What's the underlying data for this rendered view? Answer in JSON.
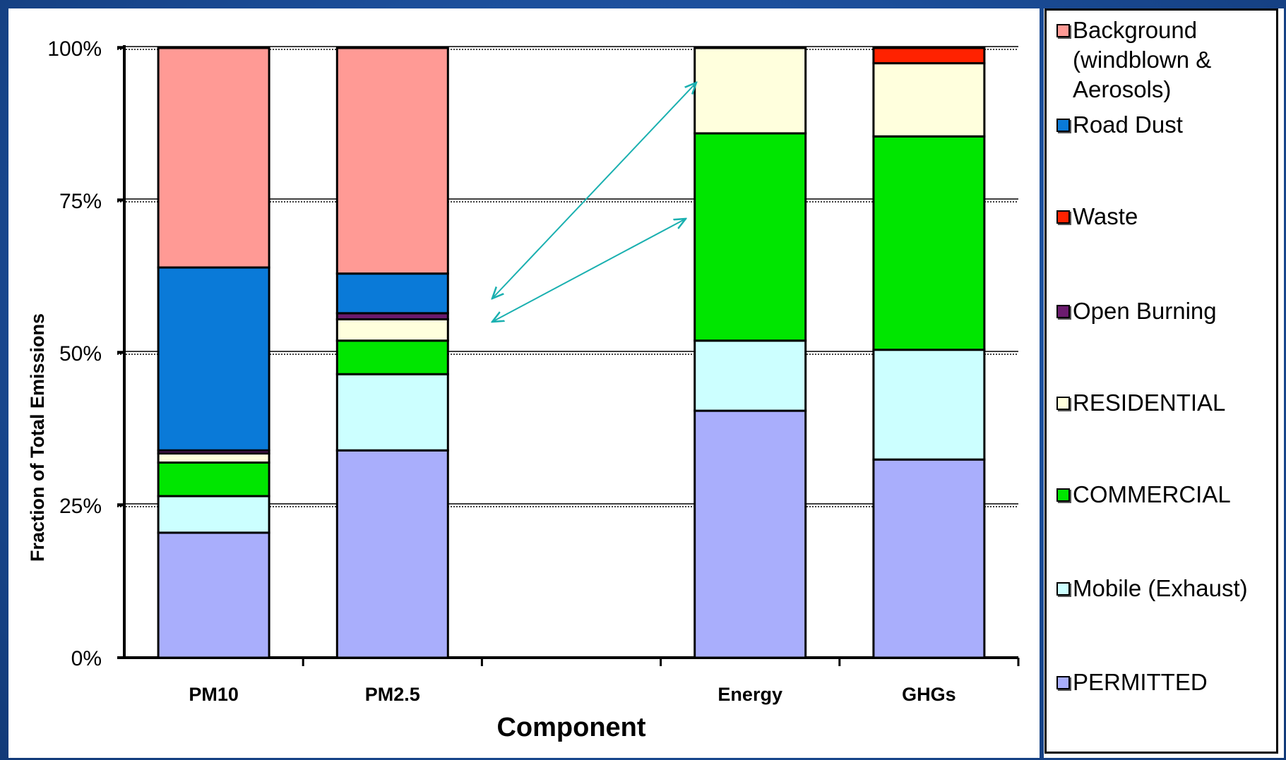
{
  "chart_data": {
    "type": "bar",
    "stacked": true,
    "categories": [
      "PM10",
      "PM2.5",
      "",
      "Energy",
      "GHGs"
    ],
    "xlabel": "Component",
    "ylabel": "Fraction of Total Emissions",
    "ylim": [
      0,
      100
    ],
    "yticks": [
      "0%",
      "25%",
      "50%",
      "75%",
      "100%"
    ],
    "grid": true,
    "legend_position": "right",
    "series": [
      {
        "name": "PERMITTED",
        "color": "#a9aefc",
        "values": [
          20.5,
          34,
          0,
          40.5,
          32.5
        ]
      },
      {
        "name": "Mobile (Exhaust)",
        "color": "#ccffff",
        "values": [
          6,
          12.5,
          0,
          11.5,
          18
        ]
      },
      {
        "name": "COMMERCIAL",
        "color": "#00e600",
        "values": [
          5.5,
          5.5,
          0,
          34,
          35
        ]
      },
      {
        "name": "RESIDENTIAL",
        "color": "#ffffdd",
        "values": [
          1.5,
          3.5,
          0,
          14,
          12
        ]
      },
      {
        "name": "Open Burning",
        "color": "#6b1b6e",
        "values": [
          0.5,
          1,
          0,
          0,
          0
        ]
      },
      {
        "name": "Waste",
        "color": "#ff2200",
        "values": [
          0,
          0,
          0,
          0,
          2.5
        ]
      },
      {
        "name": "Road Dust",
        "color": "#0a7ad8",
        "values": [
          30,
          6.5,
          0,
          0,
          0
        ]
      },
      {
        "name": "Background (windblown & Aerosols)",
        "color": "#ff9a95",
        "values": [
          36,
          37,
          0,
          0,
          0
        ]
      }
    ]
  },
  "legend": {
    "items": [
      {
        "label": "Background (windblown & Aerosols)",
        "color": "#ff9a95"
      },
      {
        "label": "Road Dust",
        "color": "#0a7ad8"
      },
      {
        "label": "Waste",
        "color": "#ff2200"
      },
      {
        "label": "Open Burning",
        "color": "#6b1b6e"
      },
      {
        "label": "RESIDENTIAL",
        "color": "#ffffdd"
      },
      {
        "label": "COMMERCIAL",
        "color": "#00e600"
      },
      {
        "label": "Mobile (Exhaust)",
        "color": "#ccffff"
      },
      {
        "label": "PERMITTED",
        "color": "#a9aefc"
      }
    ]
  },
  "annotations": {
    "arrow_color": "#1ab0b0"
  }
}
